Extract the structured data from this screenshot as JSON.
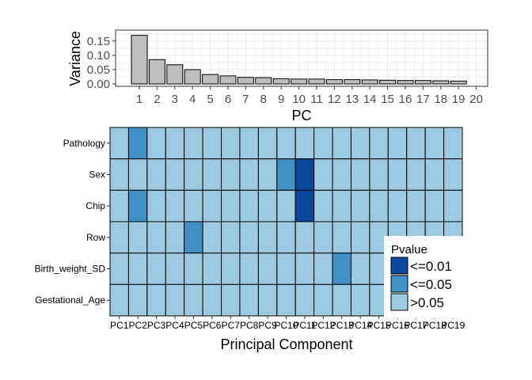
{
  "chart_data": [
    {
      "type": "bar",
      "xlabel": "PC",
      "ylabel": "Variance",
      "categories": [
        "1",
        "2",
        "3",
        "4",
        "5",
        "6",
        "7",
        "8",
        "9",
        "10",
        "11",
        "12",
        "13",
        "14",
        "15",
        "16",
        "17",
        "18",
        "19",
        "20"
      ],
      "values": [
        0.17,
        0.085,
        0.067,
        0.05,
        0.033,
        0.028,
        0.023,
        0.022,
        0.018,
        0.017,
        0.017,
        0.015,
        0.015,
        0.014,
        0.013,
        0.012,
        0.012,
        0.011,
        0.01,
        0
      ],
      "ylim": [
        0,
        0.18
      ],
      "yticks": [
        "0.00",
        "0.05",
        "0.10",
        "0.15"
      ],
      "grid": true,
      "colors": {
        "bar_fill": "#bebebe",
        "bar_stroke": "#000000",
        "grid": "#ebebeb"
      }
    },
    {
      "type": "heatmap",
      "xlabel": "Principal Component",
      "x": [
        "PC1",
        "PC2",
        "PC3",
        "PC4",
        "PC5",
        "PC6",
        "PC7",
        "PC8",
        "PC9",
        "PC10",
        "PC11",
        "PC12",
        "PC13",
        "PC14",
        "PC15",
        "PC16",
        "PC17",
        "PC18",
        "PC19"
      ],
      "y": [
        "Pathology",
        "Sex",
        "Chip",
        "Row",
        "Birth_weight_SD",
        "Gestational_Age"
      ],
      "values": [
        [
          ">0.05",
          "<=0.05",
          ">0.05",
          ">0.05",
          ">0.05",
          ">0.05",
          ">0.05",
          ">0.05",
          ">0.05",
          ">0.05",
          ">0.05",
          ">0.05",
          ">0.05",
          ">0.05",
          ">0.05",
          ">0.05",
          ">0.05",
          ">0.05",
          ">0.05"
        ],
        [
          ">0.05",
          ">0.05",
          ">0.05",
          ">0.05",
          ">0.05",
          ">0.05",
          ">0.05",
          ">0.05",
          ">0.05",
          "<=0.05",
          "<=0.01",
          ">0.05",
          ">0.05",
          ">0.05",
          ">0.05",
          ">0.05",
          ">0.05",
          ">0.05",
          ">0.05"
        ],
        [
          ">0.05",
          "<=0.05",
          ">0.05",
          ">0.05",
          ">0.05",
          ">0.05",
          ">0.05",
          ">0.05",
          ">0.05",
          ">0.05",
          "<=0.01",
          ">0.05",
          ">0.05",
          ">0.05",
          ">0.05",
          ">0.05",
          ">0.05",
          ">0.05",
          ">0.05"
        ],
        [
          ">0.05",
          ">0.05",
          ">0.05",
          ">0.05",
          "<=0.05",
          ">0.05",
          ">0.05",
          ">0.05",
          ">0.05",
          ">0.05",
          ">0.05",
          ">0.05",
          ">0.05",
          ">0.05",
          ">0.05",
          ">0.05",
          ">0.05",
          ">0.05",
          ">0.05"
        ],
        [
          ">0.05",
          ">0.05",
          ">0.05",
          ">0.05",
          ">0.05",
          ">0.05",
          ">0.05",
          ">0.05",
          ">0.05",
          ">0.05",
          ">0.05",
          ">0.05",
          "<=0.05",
          ">0.05",
          ">0.05",
          ">0.05",
          ">0.05",
          ">0.05",
          ">0.05"
        ],
        [
          ">0.05",
          ">0.05",
          ">0.05",
          ">0.05",
          ">0.05",
          ">0.05",
          ">0.05",
          ">0.05",
          ">0.05",
          ">0.05",
          ">0.05",
          ">0.05",
          ">0.05",
          ">0.05",
          ">0.05",
          ">0.05",
          ">0.05",
          ">0.05",
          ">0.05"
        ]
      ],
      "legend": {
        "title": "Pvalue",
        "placement": "bottom-right",
        "entries": [
          {
            "label": "<=0.01",
            "color": "#08479c"
          },
          {
            "label": "<=0.05",
            "color": "#4191c6"
          },
          {
            "label": ">0.05",
            "color": "#9ecae1"
          }
        ]
      }
    }
  ]
}
